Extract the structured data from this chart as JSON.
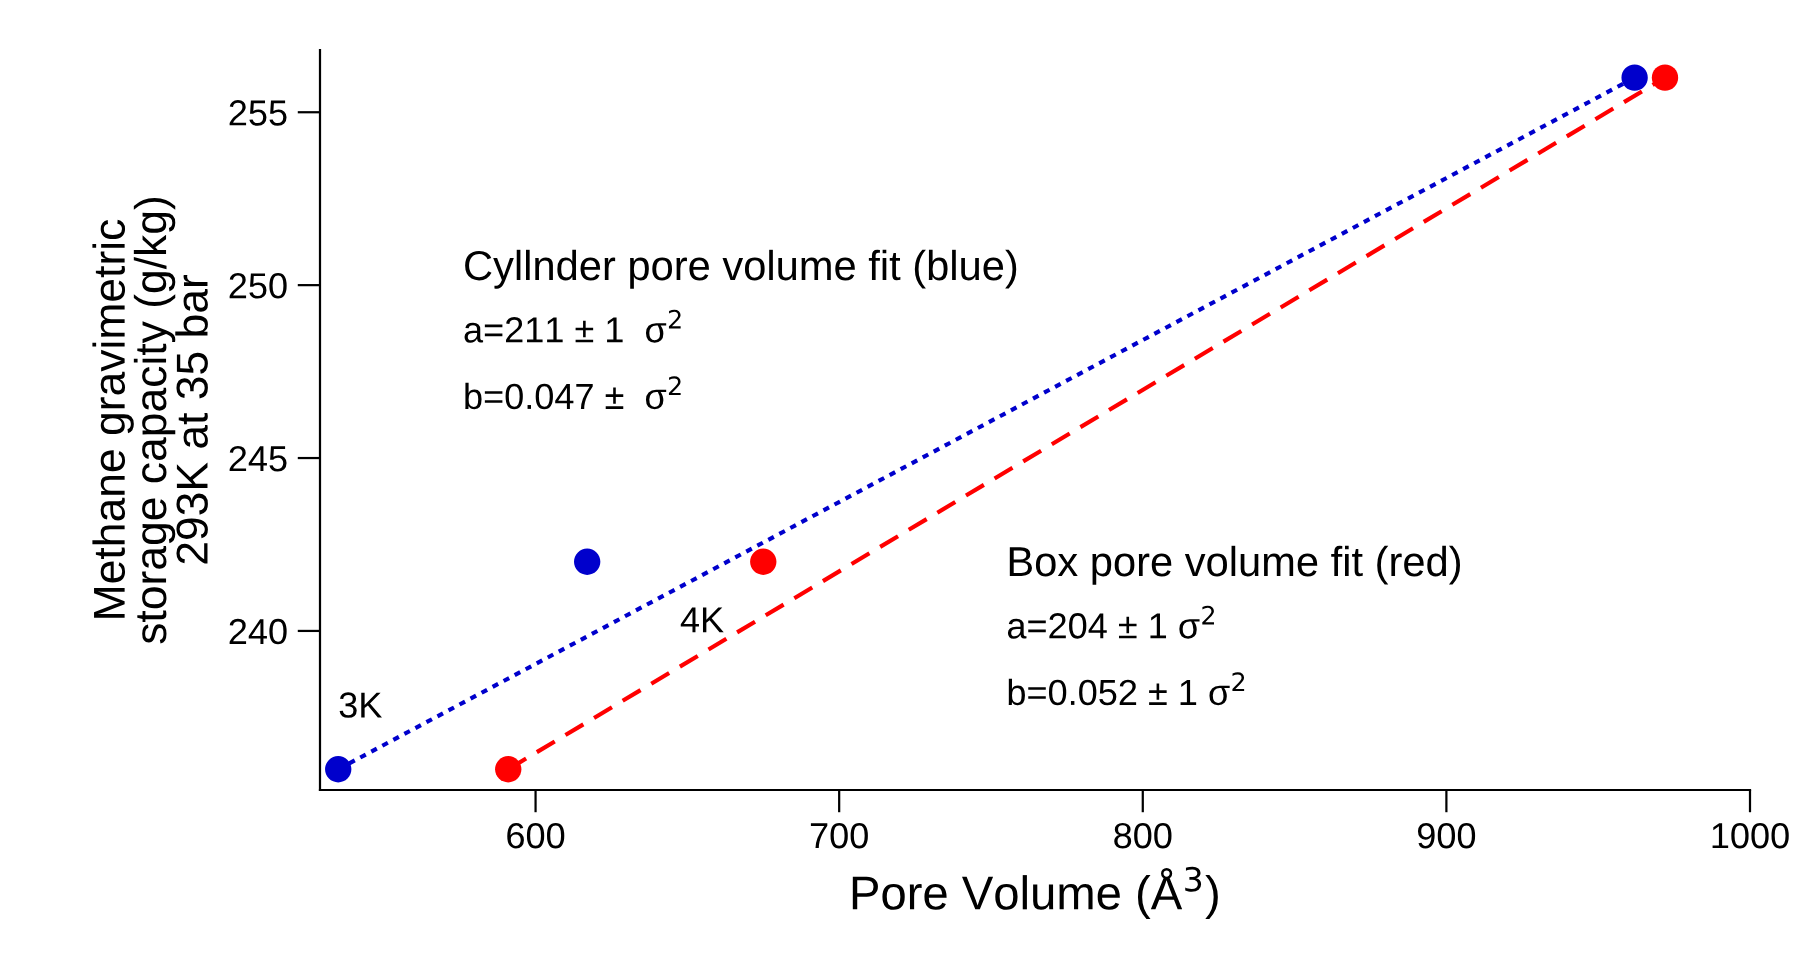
{
  "chart_data": {
    "type": "scatter",
    "xlabel": "Pore Volume (Å$^{3}$)",
    "ylabel": "Methane gravimetric\nstorage capacity (g/kg)\n293K at 35 bar",
    "series": [
      {
        "color": "#0000cc",
        "x": [
          535,
          617,
          962
        ],
        "values": [
          236,
          242,
          256
        ],
        "marker": "circle"
      },
      {
        "color": "#ff0000",
        "x": [
          591,
          675,
          972
        ],
        "values": [
          236,
          242,
          256
        ],
        "marker": "circle"
      },
      {
        "type": "line",
        "color": "#0000cc",
        "x": [
          535,
          962
        ],
        "values": [
          236,
          256
        ],
        "line_style": "dotted",
        "marker": "none"
      },
      {
        "type": "line",
        "color": "#ff0000",
        "x": [
          591,
          972
        ],
        "values": [
          236,
          256
        ],
        "line_style": "dashed",
        "marker": "none"
      }
    ],
    "xlim": [
      529,
      1000
    ],
    "ylim": [
      235.4,
      256.8
    ],
    "xticks": [
      600,
      700,
      800,
      900,
      1000
    ],
    "yticks": [
      240,
      245,
      250,
      255
    ],
    "grid": false,
    "legend": false,
    "annotations": [
      {
        "text": "3K",
        "x": 535,
        "y": 236
      },
      {
        "text": "4K",
        "x": 675,
        "y": 242
      },
      "Cyllnder pore volume fit (blue)\na=211 ± 1  σ$^{2}$\nb=0.047 ±  σ$^{2}$",
      "Box pore volume fit (red)\na=204 ± 1 σ$^{2}$\nb=0.052 ± 1 σ$^{2}$"
    ]
  }
}
